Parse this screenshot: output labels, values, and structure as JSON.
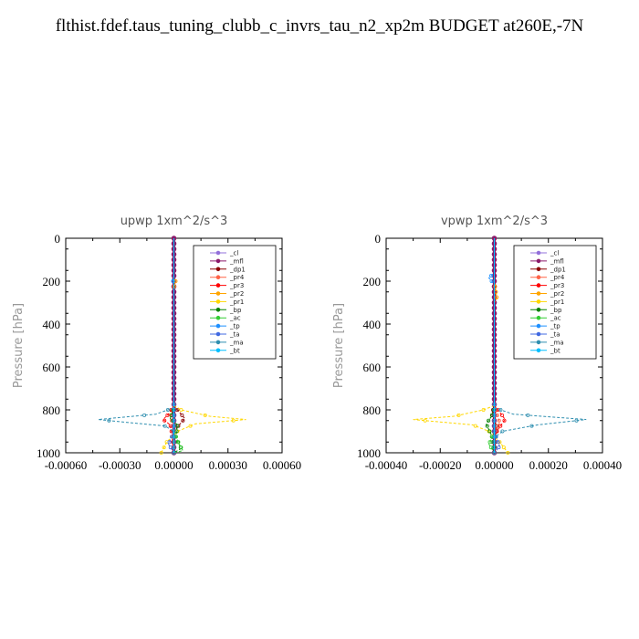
{
  "page_title": "flthist.fdef.taus_tuning_clubb_c_invrs_tau_n2_xp2m  BUDGET at260E,-7N",
  "chart_data": [
    {
      "type": "line",
      "title": "upwp   1xm^2/s^3",
      "ylabel": "Pressure [hPa]",
      "xlim": [
        -0.0006,
        0.0006
      ],
      "ylim": [
        1000,
        0
      ],
      "x_ticks": [
        "-0.00060",
        "-0.00030",
        "0.00000",
        "0.00030",
        "0.00060"
      ],
      "y_ticks": [
        "0",
        "200",
        "400",
        "600",
        "800",
        "1000"
      ],
      "legend_position": "top-right",
      "series": [
        {
          "name": "_cl",
          "color": "#9370db",
          "points": [
            [
              0,
              0
            ],
            [
              0,
              200
            ],
            [
              0,
              400
            ],
            [
              0,
              600
            ],
            [
              0,
              800
            ],
            [
              0,
              1000
            ]
          ]
        },
        {
          "name": "_mfl",
          "color": "#8b1a6b",
          "points": [
            [
              0,
              0
            ],
            [
              0,
              200
            ],
            [
              0,
              400
            ],
            [
              0,
              600
            ],
            [
              0,
              800
            ],
            [
              0,
              1000
            ]
          ]
        },
        {
          "name": "_dp1",
          "color": "#8b0000",
          "points": [
            [
              0,
              780
            ],
            [
              2e-05,
              800
            ],
            [
              6e-05,
              840
            ],
            [
              3e-05,
              870
            ],
            [
              0,
              900
            ],
            [
              0,
              1000
            ]
          ]
        },
        {
          "name": "_pr4",
          "color": "#ff6347",
          "points": [
            [
              0,
              780
            ],
            [
              -1e-05,
              800
            ],
            [
              -2e-05,
              840
            ],
            [
              0,
              870
            ],
            [
              0,
              1000
            ]
          ]
        },
        {
          "name": "_pr3",
          "color": "#ff0000",
          "points": [
            [
              0,
              780
            ],
            [
              -3e-05,
              820
            ],
            [
              -6e-05,
              845
            ],
            [
              -2e-05,
              870
            ],
            [
              -1e-05,
              920
            ],
            [
              0,
              1000
            ]
          ]
        },
        {
          "name": "_pr2",
          "color": "#ffa500",
          "points": [
            [
              0,
              0
            ],
            [
              0,
              180
            ],
            [
              1e-05,
              200
            ],
            [
              0,
              230
            ],
            [
              0,
              1000
            ]
          ]
        },
        {
          "name": "_pr1",
          "color": "#ffd700",
          "points": [
            [
              0,
              780
            ],
            [
              4e-05,
              800
            ],
            [
              0.0002,
              830
            ],
            [
              0.0004,
              845
            ],
            [
              0.00012,
              865
            ],
            [
              2e-05,
              900
            ],
            [
              -4e-05,
              950
            ],
            [
              -7e-05,
              1000
            ]
          ]
        },
        {
          "name": "_bp",
          "color": "#008000",
          "points": [
            [
              0,
              790
            ],
            [
              -2e-05,
              840
            ],
            [
              2e-05,
              870
            ],
            [
              1e-05,
              930
            ],
            [
              4e-05,
              980
            ],
            [
              0,
              1000
            ]
          ]
        },
        {
          "name": "_ac",
          "color": "#32cd32",
          "points": [
            [
              0,
              900
            ],
            [
              3e-05,
              960
            ],
            [
              5e-05,
              990
            ],
            [
              0,
              1000
            ]
          ]
        },
        {
          "name": "_tp",
          "color": "#1e90ff",
          "points": [
            [
              0,
              0
            ],
            [
              0,
              175
            ],
            [
              -1e-05,
              190
            ],
            [
              0,
              210
            ],
            [
              0,
              1000
            ]
          ]
        },
        {
          "name": "_ta",
          "color": "#4169e1",
          "points": [
            [
              0,
              900
            ],
            [
              -3e-05,
              960
            ],
            [
              0,
              1000
            ]
          ]
        },
        {
          "name": "_ma",
          "color": "#2f8fb0",
          "points": [
            [
              0,
              790
            ],
            [
              -0.0001,
              820
            ],
            [
              -0.00042,
              845
            ],
            [
              -0.00024,
              860
            ],
            [
              -5e-05,
              875
            ],
            [
              0,
              900
            ],
            [
              0,
              1000
            ]
          ]
        },
        {
          "name": "_bt",
          "color": "#00bfff",
          "points": [
            [
              0,
              0
            ],
            [
              0,
              200
            ],
            [
              0,
              400
            ],
            [
              0,
              600
            ],
            [
              0,
              800
            ],
            [
              0,
              1000
            ]
          ]
        }
      ]
    },
    {
      "type": "line",
      "title": "vpwp   1xm^2/s^3",
      "ylabel": "Pressure [hPa]",
      "xlim": [
        -0.0004,
        0.0004
      ],
      "ylim": [
        1000,
        0
      ],
      "x_ticks": [
        "-0.00040",
        "-0.00020",
        "0.00000",
        "0.00020",
        "0.00040"
      ],
      "y_ticks": [
        "0",
        "200",
        "400",
        "600",
        "800",
        "1000"
      ],
      "legend_position": "top-right",
      "series": [
        {
          "name": "_cl",
          "color": "#9370db",
          "points": [
            [
              0,
              0
            ],
            [
              0,
              200
            ],
            [
              0,
              400
            ],
            [
              0,
              600
            ],
            [
              0,
              800
            ],
            [
              0,
              1000
            ]
          ]
        },
        {
          "name": "_mfl",
          "color": "#8b1a6b",
          "points": [
            [
              0,
              0
            ],
            [
              0,
              200
            ],
            [
              0,
              400
            ],
            [
              0,
              600
            ],
            [
              0,
              800
            ],
            [
              0,
              1000
            ]
          ]
        },
        {
          "name": "_dp1",
          "color": "#8b0000",
          "points": [
            [
              0,
              780
            ],
            [
              -1e-05,
              820
            ],
            [
              0,
              850
            ],
            [
              1e-05,
              880
            ],
            [
              0,
              1000
            ]
          ]
        },
        {
          "name": "_pr4",
          "color": "#ff6347",
          "points": [
            [
              0,
              780
            ],
            [
              1e-05,
              820
            ],
            [
              2e-05,
              860
            ],
            [
              0,
              900
            ],
            [
              0,
              1000
            ]
          ]
        },
        {
          "name": "_pr3",
          "color": "#ff0000",
          "points": [
            [
              0,
              780
            ],
            [
              2e-05,
              810
            ],
            [
              4e-05,
              845
            ],
            [
              2e-05,
              880
            ],
            [
              0,
              920
            ],
            [
              0,
              1000
            ]
          ]
        },
        {
          "name": "_pr2",
          "color": "#ffa500",
          "points": [
            [
              0,
              0
            ],
            [
              0,
              200
            ],
            [
              1e-05,
              280
            ],
            [
              0,
              300
            ],
            [
              0,
              1000
            ]
          ]
        },
        {
          "name": "_pr1",
          "color": "#ffd700",
          "points": [
            [
              0,
              780
            ],
            [
              -4e-05,
              800
            ],
            [
              -0.00015,
              830
            ],
            [
              -0.0003,
              845
            ],
            [
              -8e-05,
              870
            ],
            [
              -2e-05,
              900
            ],
            [
              2e-05,
              950
            ],
            [
              5e-05,
              1000
            ]
          ]
        },
        {
          "name": "_bp",
          "color": "#008000",
          "points": [
            [
              0,
              790
            ],
            [
              -1e-05,
              830
            ],
            [
              -3e-05,
              865
            ],
            [
              -1e-05,
              920
            ],
            [
              0,
              1000
            ]
          ]
        },
        {
          "name": "_ac",
          "color": "#32cd32",
          "points": [
            [
              0,
              900
            ],
            [
              -2e-05,
              960
            ],
            [
              0,
              1000
            ]
          ]
        },
        {
          "name": "_tp",
          "color": "#1e90ff",
          "points": [
            [
              0,
              0
            ],
            [
              0,
              160
            ],
            [
              -2e-05,
              185
            ],
            [
              0,
              215
            ],
            [
              0,
              1000
            ]
          ]
        },
        {
          "name": "_ta",
          "color": "#4169e1",
          "points": [
            [
              0,
              900
            ],
            [
              2e-05,
              970
            ],
            [
              0,
              1000
            ]
          ]
        },
        {
          "name": "_ma",
          "color": "#2f8fb0",
          "points": [
            [
              0,
              790
            ],
            [
              7e-05,
              820
            ],
            [
              0.00034,
              845
            ],
            [
              0.00016,
              870
            ],
            [
              3e-05,
              900
            ],
            [
              0,
              930
            ],
            [
              0,
              1000
            ]
          ]
        },
        {
          "name": "_bt",
          "color": "#00bfff",
          "points": [
            [
              0,
              0
            ],
            [
              0,
              200
            ],
            [
              0,
              400
            ],
            [
              0,
              600
            ],
            [
              0,
              800
            ],
            [
              0,
              1000
            ]
          ]
        }
      ]
    }
  ]
}
